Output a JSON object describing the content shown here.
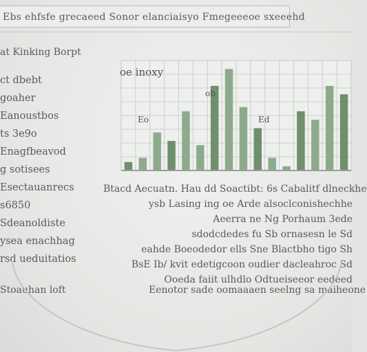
{
  "header": {
    "title": "Ebs ehfsfe grecaeed Sonor elanciaisyo Fmegeeeoe sxeeehd"
  },
  "sidebar": {
    "heading": "at Kinking Borpt",
    "items": [
      "ct dbebt",
      "goaher",
      "Eanoustbos",
      "ts 3e9o",
      "Enagfbeavod",
      "g sotisees",
      "Esectauanrecs",
      "s6850",
      "Sdeanoldiste",
      "ysea enachhag",
      "rsd ueduitatios"
    ]
  },
  "chart_data": {
    "type": "bar",
    "title": "oe inoxy",
    "annotations": [
      "Eo",
      "Ed",
      "ob"
    ],
    "series": [
      {
        "name": "",
        "values": [
          4,
          6,
          18,
          14,
          28,
          12,
          40,
          48,
          30,
          20,
          6,
          2,
          28,
          24,
          40,
          36
        ]
      }
    ],
    "ylim": [
      0,
      52
    ],
    "grid": true,
    "colors": {
      "bar": "#8eaa8c",
      "bar_dark": "#6f8f6d",
      "grid": "#c4c7c5",
      "axis": "#9b9e9c"
    }
  },
  "body": {
    "lines": [
      "Btacd Aecuatn. Hau dd Soactibt: 6s Cabalitf dlneckhe",
      "ysb Lasing ing oe Arde alsoclconishechhe",
      "Aeerra ne Ng Porhaum 3ede",
      "sdodcdedes fu Sb ornasesn le Sd",
      "eahde Boeodedor ells Sne Blactbho tigo Sh",
      "BsE Ib/ kvit edetigcoon oudier dacleahroc Sd",
      "Ooeda faiit ulhdlo Odtueiseeor eedeed"
    ],
    "footer_left": "Stoauhan loft",
    "footer_right": "Eenotor sade oomaaaen seelng sa maiheone"
  }
}
